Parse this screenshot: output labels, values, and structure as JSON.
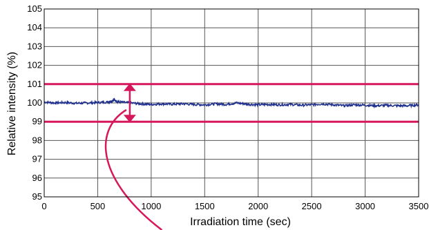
{
  "chart_data": {
    "type": "line",
    "xlabel": "Irradiation time (sec)",
    "ylabel": "Relative intensity (%)",
    "xlim": [
      0,
      3500
    ],
    "ylim": [
      95,
      105
    ],
    "x_ticks": [
      "0",
      "500",
      "1000",
      "1500",
      "2000",
      "2500",
      "3000",
      "3500"
    ],
    "y_ticks": [
      "95",
      "96",
      "97",
      "98",
      "99",
      "100",
      "101",
      "102",
      "103",
      "104",
      "105"
    ],
    "grid": true,
    "series": [
      {
        "color": "#1f2f8f",
        "x": [
          0,
          100,
          200,
          300,
          400,
          500,
          600,
          650,
          700,
          800,
          900,
          1000,
          1100,
          1200,
          1300,
          1400,
          1500,
          1600,
          1700,
          1800,
          1900,
          2000,
          2100,
          2200,
          2300,
          2400,
          2500,
          2600,
          2700,
          2800,
          2900,
          3000,
          3100,
          3200,
          3300,
          3400,
          3500
        ],
        "y": [
          100.05,
          100.0,
          100.02,
          99.98,
          100.0,
          100.02,
          100.05,
          100.15,
          100.05,
          100.0,
          99.95,
          99.92,
          99.95,
          99.93,
          99.95,
          99.92,
          99.9,
          99.95,
          99.92,
          100.0,
          99.93,
          99.9,
          99.92,
          99.9,
          99.92,
          99.88,
          99.9,
          99.95,
          99.9,
          99.85,
          99.9,
          99.88,
          99.85,
          99.87,
          99.85,
          99.85,
          99.9
        ]
      }
    ],
    "reference_lines": [
      {
        "y": 101,
        "color": "#d6175c"
      },
      {
        "y": 99,
        "color": "#d6175c"
      }
    ],
    "annotation": {
      "double_arrow": {
        "x": 800,
        "y_from": 99,
        "y_to": 101,
        "color": "#d6175c"
      }
    }
  }
}
